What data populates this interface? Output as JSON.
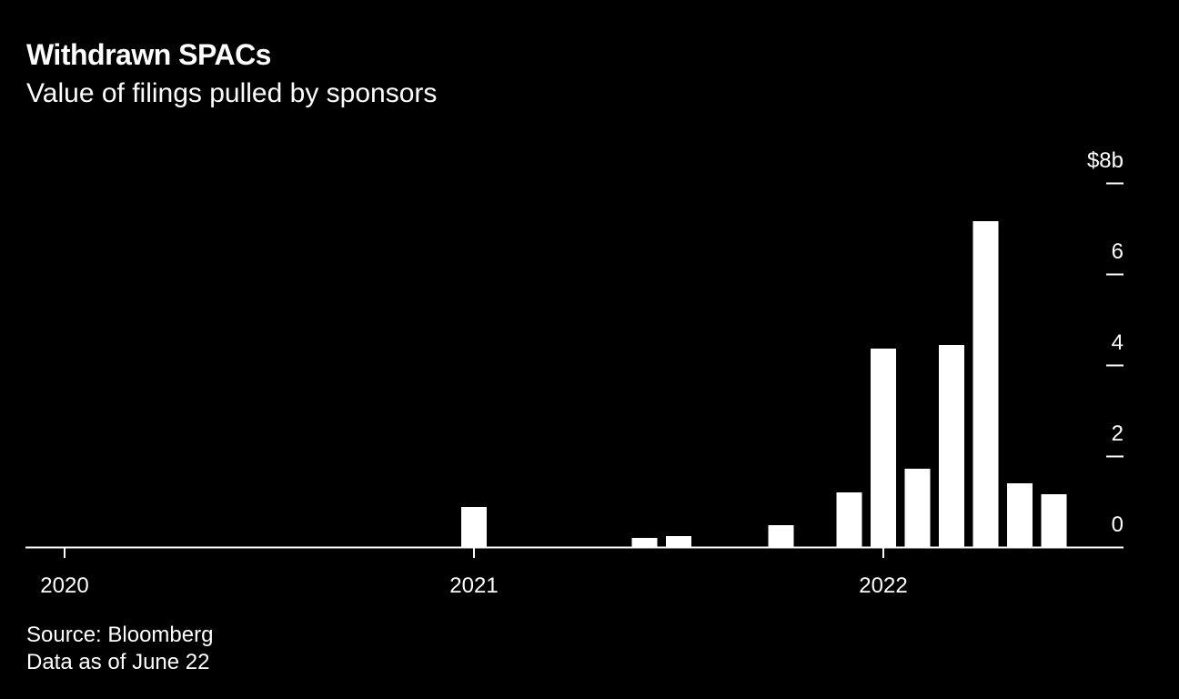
{
  "chart_data": {
    "type": "bar",
    "title": "Withdrawn SPACs",
    "subtitle": "Value of filings pulled by sponsors",
    "xlabel": "",
    "ylabel": "",
    "x_tick_labels": [
      "2020",
      "2021",
      "2022"
    ],
    "y_tick_labels": [
      "0",
      "2",
      "4",
      "6",
      "$8b"
    ],
    "y_ticks": [
      0,
      2,
      4,
      6,
      8
    ],
    "ylim": [
      0,
      8
    ],
    "xlim": [
      "2020-01",
      "2022-07"
    ],
    "unit": "$ billions",
    "grid": false,
    "y_axis_position": "right",
    "bar_color": "#ffffff",
    "background": "#000000",
    "categories": [
      "2021-01",
      "2021-06",
      "2021-07",
      "2021-10",
      "2021-12",
      "2022-01",
      "2022-02",
      "2022-03",
      "2022-04",
      "2022-05",
      "2022-06"
    ],
    "values": [
      0.88,
      0.2,
      0.24,
      0.48,
      1.2,
      4.36,
      1.72,
      4.44,
      7.16,
      1.4,
      1.16
    ]
  },
  "footer": {
    "source": "Source: Bloomberg",
    "note": "Data as of June 22"
  }
}
